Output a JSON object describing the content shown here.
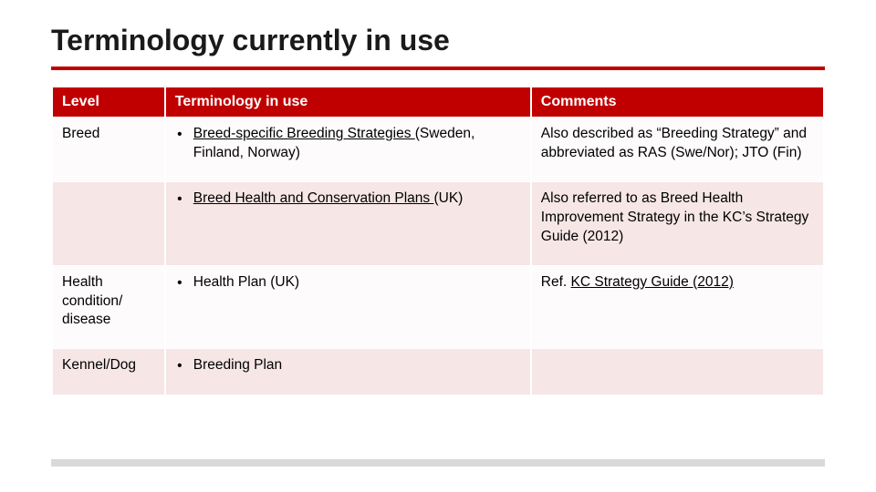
{
  "colors": {
    "accent_red": "#c00000",
    "row_alt_bg": "#f6e6e6",
    "row_main_bg": "#fdfbfb",
    "text": "#000000",
    "bottom_bar": "#d9d9d9",
    "background": "#ffffff"
  },
  "title": "Terminology currently in use",
  "table": {
    "columns": [
      {
        "key": "level",
        "label": "Level",
        "width_pct": 14.5
      },
      {
        "key": "terminology",
        "label": "Terminology in use",
        "width_pct": 47.5
      },
      {
        "key": "comments",
        "label": "Comments",
        "width_pct": 38
      }
    ],
    "rows": [
      {
        "alt": false,
        "level": "Breed",
        "terminology_link": "Breed-specific Breeding Strategies ",
        "terminology_tail": "(Sweden, Finland, Norway)",
        "comments": "Also described as “Breeding Strategy” and abbreviated as RAS (Swe/Nor); JTO (Fin)"
      },
      {
        "alt": true,
        "level": "",
        "terminology_link": "Breed Health and Conservation Plans ",
        "terminology_tail": "(UK)",
        "comments": "Also referred to as Breed Health Improvement Strategy in the KC’s Strategy Guide (2012)"
      },
      {
        "alt": false,
        "level": "Health condition/ disease",
        "terminology_link": "",
        "terminology_tail": "Health Plan (UK)",
        "comments_prefix": "Ref. ",
        "comments_link": "KC Strategy Guide (2012)"
      },
      {
        "alt": true,
        "level": "Kennel/Dog",
        "terminology_link": "",
        "terminology_tail": "Breeding Plan",
        "comments": ""
      }
    ]
  },
  "bullet_glyph": "•"
}
